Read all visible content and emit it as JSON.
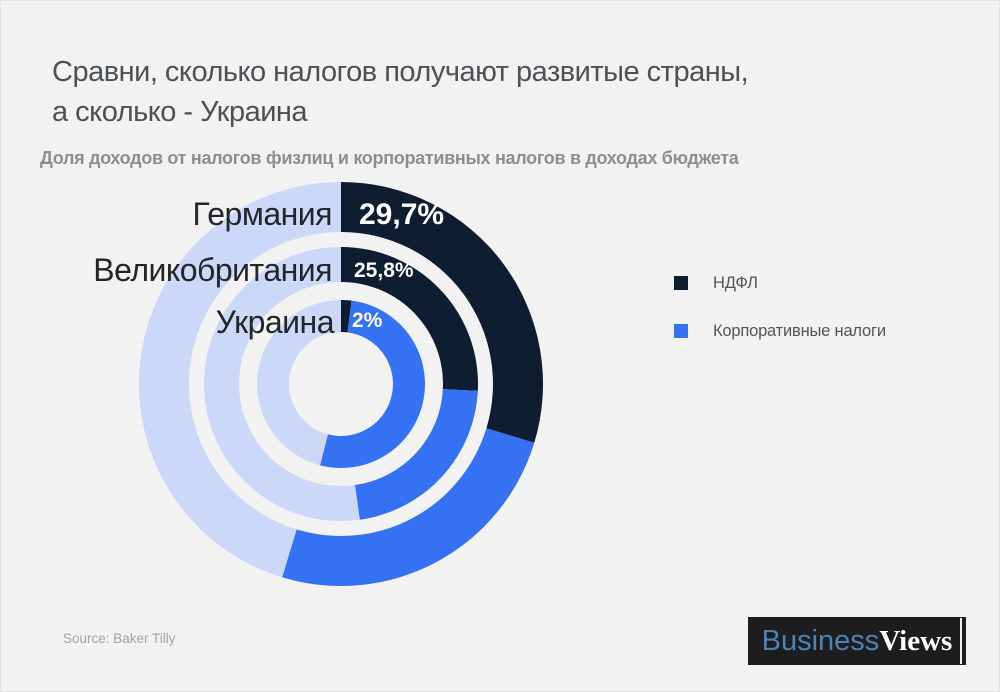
{
  "title": {
    "line1": "Сравни, сколько налогов получают развитые страны,",
    "line2": "а сколько - Украина"
  },
  "subtitle": "Доля доходов от налогов физлиц и корпоративных налогов в доходах бюджета",
  "source": "Source: Baker Tilly",
  "logo": {
    "part1": "Business",
    "part2": "Views"
  },
  "chart_data": {
    "type": "pie",
    "variant": "concentric-donut",
    "title": "Доля доходов от налогов физлиц и корпоративных налогов в доходах бюджета",
    "unit": "percent of budget revenues",
    "start_angle_deg": 0,
    "direction": "clockwise",
    "rings": [
      {
        "label": "Германия",
        "value_label": "29,7%",
        "ndfl_pct": 29.7,
        "corporate_pct_est": 25.0
      },
      {
        "label": "Великобритания",
        "value_label": "25,8%",
        "ndfl_pct": 25.8,
        "corporate_pct_est": 22.0
      },
      {
        "label": "Украина",
        "value_label": "2%",
        "ndfl_pct": 2.0,
        "corporate_pct_est": 52.0
      }
    ],
    "legend": [
      {
        "label": "НДФЛ",
        "color": "#0f1d31"
      },
      {
        "label": "Корпоративные налоги",
        "color": "#3571f3"
      }
    ],
    "colors": {
      "ndfl": "#0f1d31",
      "corporate": "#3571f3",
      "remainder": "#ccd8f8",
      "background": "#f2f2f2"
    }
  }
}
